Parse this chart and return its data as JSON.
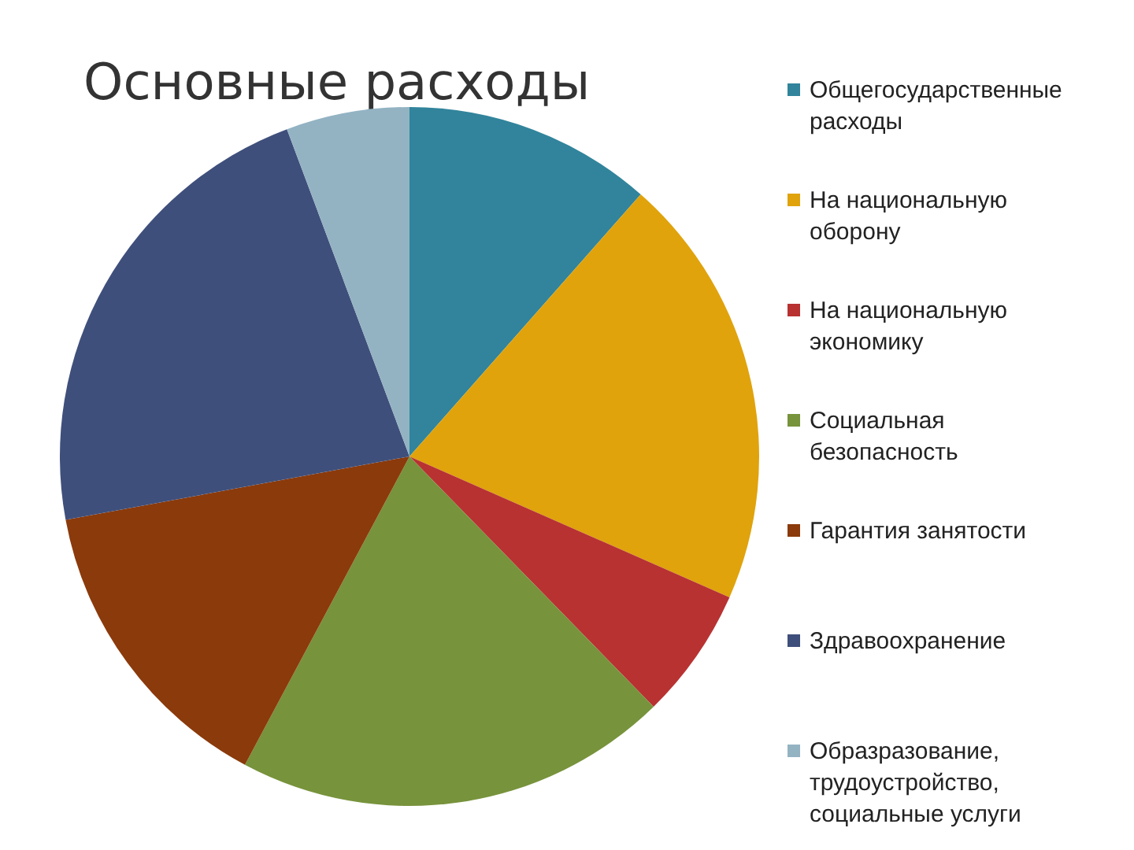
{
  "chart_data": {
    "type": "pie",
    "title": "Основные расходы",
    "legend": "right",
    "categories": [
      "Общегосударственные расходы",
      "На национальную оборону",
      "На национальную экономику",
      "Социальная безопасность",
      "Гарантия занятости",
      "Здравоохранение",
      "Образразование, трудоустройство, социальные услуги"
    ],
    "values": [
      11.5,
      20.1,
      6.1,
      20.1,
      14.3,
      22.2,
      5.7
    ],
    "colors": [
      "#31849b",
      "#e0a30c",
      "#b83232",
      "#77933c",
      "#8b3a0b",
      "#3f4f7b",
      "#93b3c3"
    ]
  }
}
